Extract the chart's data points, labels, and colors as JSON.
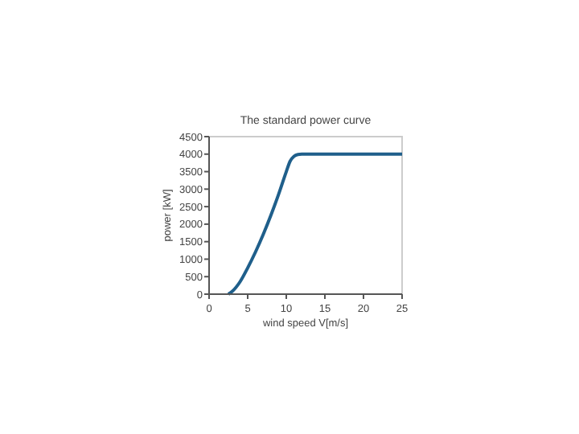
{
  "chart_data": {
    "type": "line",
    "title": "The standard power curve",
    "xlabel": "wind speed V[m/s]",
    "ylabel": "power [kW]",
    "x": [
      2.5,
      3,
      4,
      5,
      6,
      7,
      8,
      9,
      10,
      10.5,
      11,
      11.5,
      12,
      13,
      25
    ],
    "series": [
      {
        "color": "#1f5f8b",
        "values": [
          0,
          80,
          350,
          750,
          1200,
          1700,
          2250,
          2850,
          3500,
          3800,
          3940,
          3990,
          4000,
          4000,
          4000
        ]
      }
    ],
    "xlim": [
      0,
      25
    ],
    "xticks": [
      0,
      5,
      10,
      15,
      20,
      25
    ],
    "ylim": [
      0,
      4500
    ],
    "yticks": [
      0,
      500,
      1000,
      1500,
      2000,
      2500,
      3000,
      3500,
      4000,
      4500
    ],
    "marker": "none",
    "line_style": "solid"
  }
}
